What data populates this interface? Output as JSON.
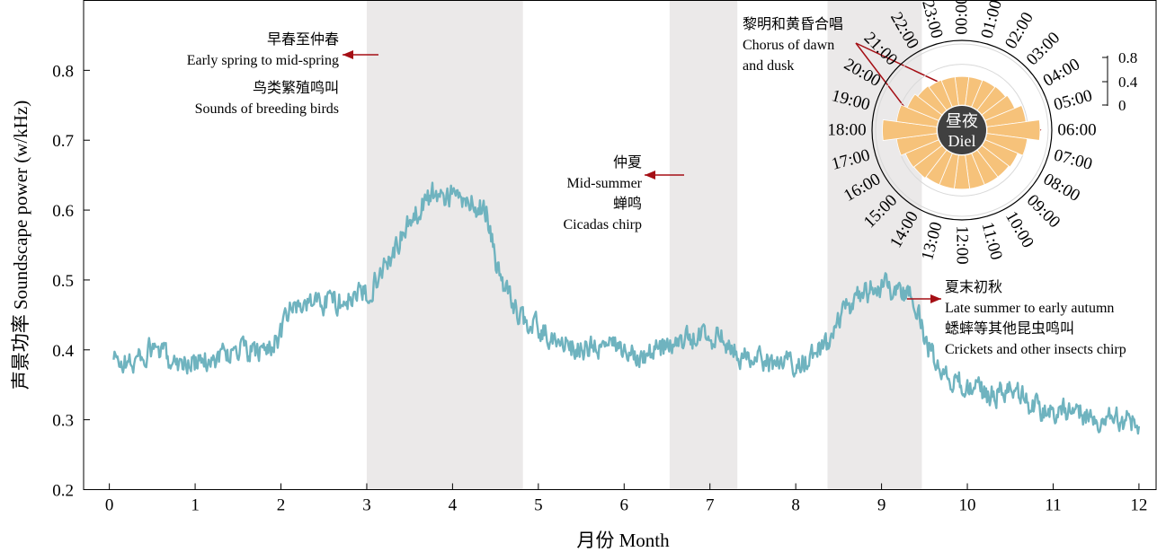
{
  "chart_data": [
    {
      "type": "line",
      "xlabel": "月份 Month",
      "ylabel": "声景功率 Soundscape power (w/kHz)",
      "xlim": [
        -0.3,
        12.2
      ],
      "ylim": [
        0.2,
        0.9
      ],
      "xticks": [
        0,
        1,
        2,
        3,
        4,
        5,
        6,
        7,
        8,
        9,
        10,
        11,
        12
      ],
      "yticks": [
        0.2,
        0.3,
        0.4,
        0.5,
        0.6,
        0.7,
        0.8
      ],
      "grid": false,
      "line_color": "#6fb3bf",
      "shading_color": "#ebe9e9",
      "arrow_color": "#a50f15",
      "series": [
        {
          "x": [
            0.05,
            0.25,
            0.5,
            0.75,
            1.0,
            1.25,
            1.5,
            1.75,
            2.0,
            2.1,
            2.25,
            2.5,
            2.75,
            2.95,
            3.0,
            3.1,
            3.25,
            3.5,
            3.65,
            3.8,
            4.0,
            4.2,
            4.4,
            4.5,
            4.55,
            4.65,
            4.8,
            5.0,
            5.25,
            5.5,
            5.75,
            6.0,
            6.25,
            6.5,
            6.75,
            7.0,
            7.25,
            7.35,
            7.5,
            7.75,
            8.0,
            8.2,
            8.4,
            8.55,
            8.75,
            9.0,
            9.25,
            9.4,
            9.5,
            9.6,
            9.75,
            10.0,
            10.25,
            10.5,
            10.75,
            11.0,
            11.25,
            11.5,
            11.75,
            12.0
          ],
          "y": [
            0.385,
            0.38,
            0.4,
            0.385,
            0.38,
            0.39,
            0.4,
            0.395,
            0.42,
            0.455,
            0.465,
            0.47,
            0.47,
            0.48,
            0.48,
            0.5,
            0.53,
            0.58,
            0.61,
            0.625,
            0.62,
            0.61,
            0.6,
            0.53,
            0.5,
            0.48,
            0.445,
            0.43,
            0.41,
            0.4,
            0.405,
            0.4,
            0.395,
            0.405,
            0.415,
            0.42,
            0.41,
            0.395,
            0.385,
            0.38,
            0.38,
            0.39,
            0.41,
            0.45,
            0.48,
            0.49,
            0.485,
            0.465,
            0.42,
            0.39,
            0.365,
            0.345,
            0.335,
            0.34,
            0.32,
            0.31,
            0.315,
            0.3,
            0.3,
            0.295
          ],
          "noise_amplitude": 0.015
        }
      ],
      "shaded_regions": [
        [
          3.0,
          4.82
        ],
        [
          6.53,
          7.32
        ],
        [
          8.37,
          9.47
        ]
      ],
      "annotations": [
        {
          "lines": [
            "早春至仲春",
            "Early spring to mid-spring",
            "鸟类繁殖鸣叫",
            "Sounds of breeding birds"
          ]
        },
        {
          "lines": [
            "仲夏",
            "Mid-summer",
            "蝉鸣",
            "Cicadas chirp"
          ]
        },
        {
          "lines": [
            "夏末初秋",
            "Late summer to early autumn",
            "蟋蟀等其他昆虫鸣叫",
            "Crickets and other insects chirp"
          ]
        },
        {
          "lines": [
            "黎明和黄昏合唱",
            "Chorus of dawn",
            "and dusk"
          ]
        }
      ]
    },
    {
      "type": "polar-bar",
      "center_label": [
        "昼夜",
        "Diel"
      ],
      "hours": [
        "00:00",
        "01:00",
        "02:00",
        "03:00",
        "04:00",
        "05:00",
        "06:00",
        "07:00",
        "08:00",
        "09:00",
        "10:00",
        "11:00",
        "12:00",
        "13:00",
        "14:00",
        "15:00",
        "16:00",
        "17:00",
        "18:00",
        "19:00",
        "20:00",
        "21:00",
        "22:00",
        "23:00"
      ],
      "values": [
        0.42,
        0.42,
        0.43,
        0.44,
        0.47,
        0.58,
        0.78,
        0.6,
        0.52,
        0.5,
        0.5,
        0.5,
        0.5,
        0.5,
        0.5,
        0.52,
        0.53,
        0.6,
        0.8,
        0.6,
        0.5,
        0.45,
        0.43,
        0.42
      ],
      "radial_ticks": [
        "0.8",
        "0.4",
        "0"
      ],
      "rlim": [
        0,
        0.9
      ],
      "bar_color": "#f6c27a",
      "center_color": "#404040"
    }
  ]
}
